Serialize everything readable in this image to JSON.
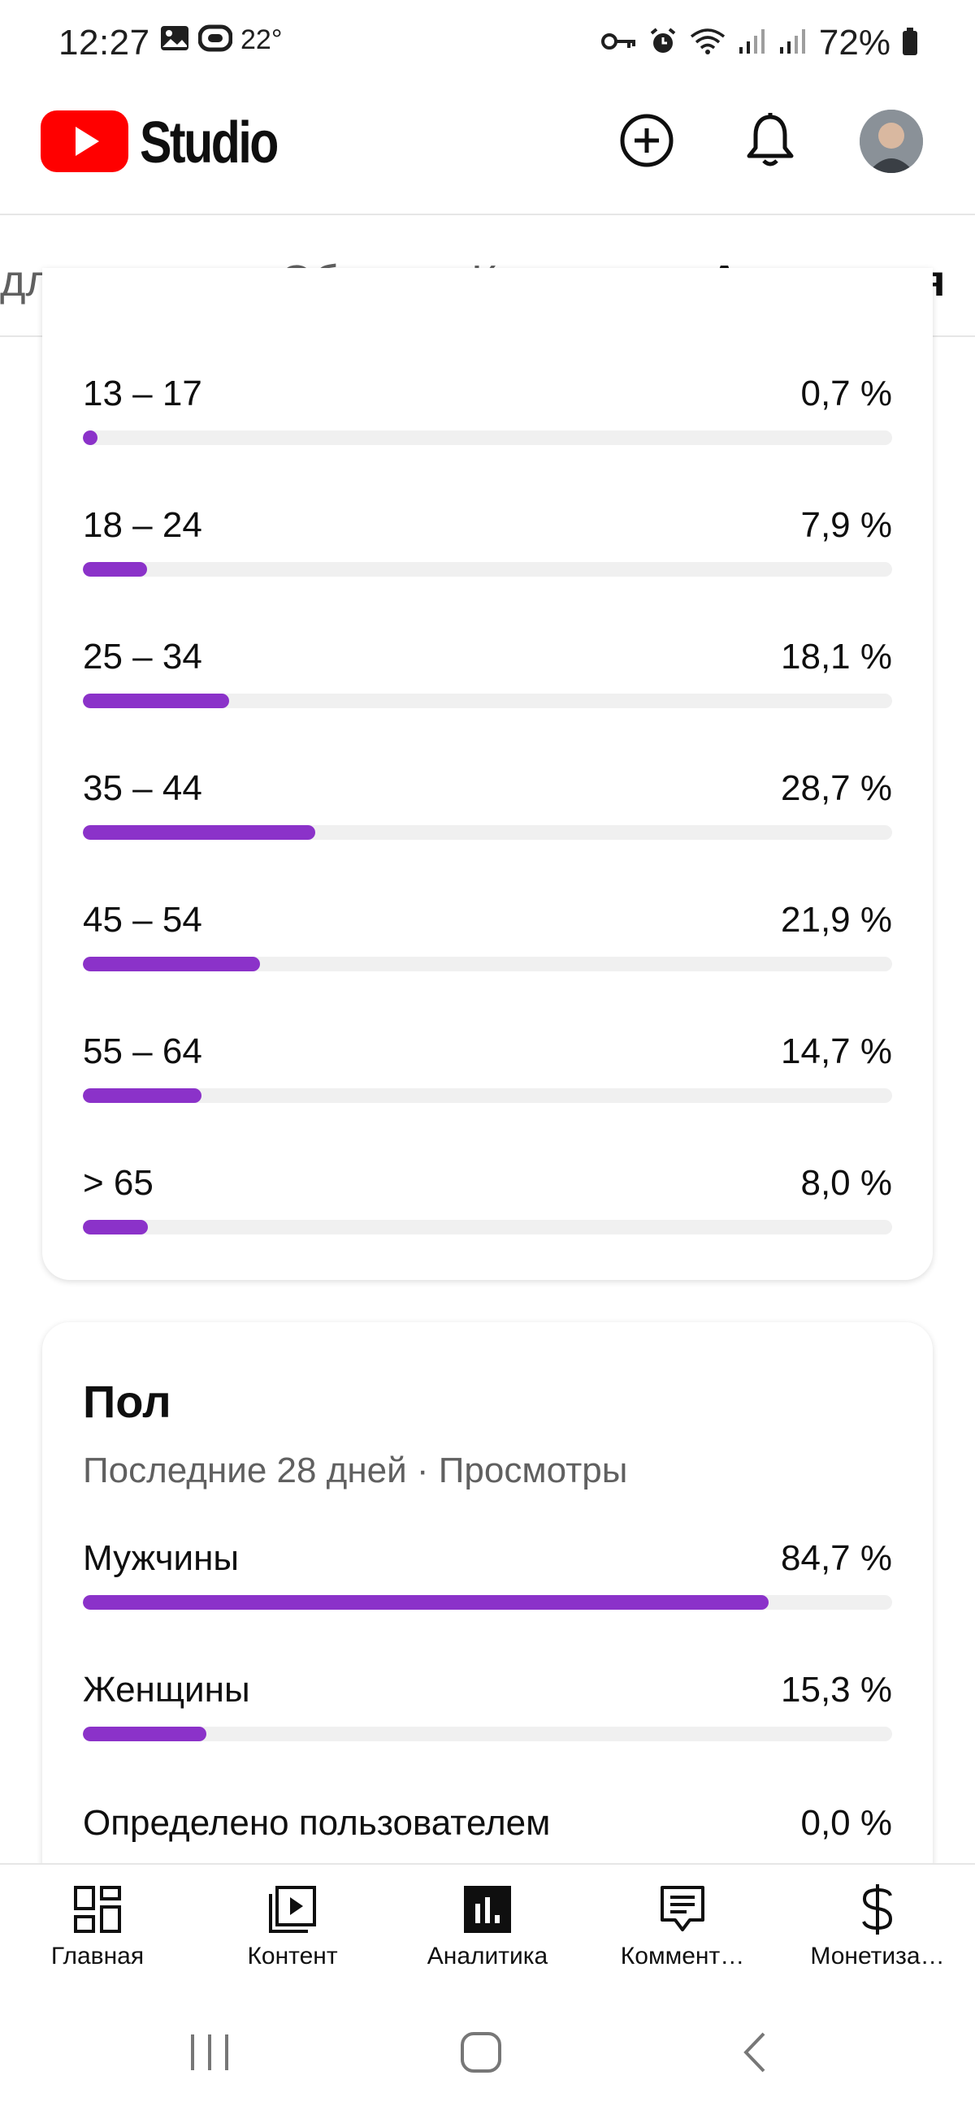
{
  "status_bar": {
    "time": "12:27",
    "temperature": "22°",
    "battery": "72%"
  },
  "header": {
    "logo_text": "Studio",
    "brand_color": "#ff0000"
  },
  "tabs": [
    {
      "label": "для видео",
      "active": false
    },
    {
      "label": "Обзор",
      "active": false
    },
    {
      "label": "Контент",
      "active": false
    },
    {
      "label": "Аудитория",
      "active": true
    }
  ],
  "age": {
    "rows": [
      {
        "label": "13 – 17",
        "value": "0,7 %",
        "percent": 0.7
      },
      {
        "label": "18 – 24",
        "value": "7,9 %",
        "percent": 7.9
      },
      {
        "label": "25 – 34",
        "value": "18,1 %",
        "percent": 18.1
      },
      {
        "label": "35 – 44",
        "value": "28,7 %",
        "percent": 28.7
      },
      {
        "label": "45 – 54",
        "value": "21,9 %",
        "percent": 21.9
      },
      {
        "label": "55 – 64",
        "value": "14,7 %",
        "percent": 14.7
      },
      {
        "label": "> 65",
        "value": "8,0 %",
        "percent": 8.0
      }
    ]
  },
  "gender": {
    "title": "Пол",
    "subtitle": "Последние 28 дней · Просмотры",
    "rows": [
      {
        "label": "Мужчины",
        "value": "84,7 %",
        "percent": 84.7
      },
      {
        "label": "Женщины",
        "value": "15,3 %",
        "percent": 15.3
      },
      {
        "label": "Определено пользователем",
        "value": "0,0 %",
        "percent": 0.0
      }
    ]
  },
  "bar_color": "#8b32c9",
  "bottom_nav": [
    {
      "label": "Главная",
      "icon": "dashboard-icon"
    },
    {
      "label": "Контент",
      "icon": "content-icon"
    },
    {
      "label": "Аналитика",
      "icon": "analytics-icon",
      "active": true
    },
    {
      "label": "Коммент…",
      "icon": "comments-icon"
    },
    {
      "label": "Монетиза…",
      "icon": "monetization-icon"
    }
  ]
}
